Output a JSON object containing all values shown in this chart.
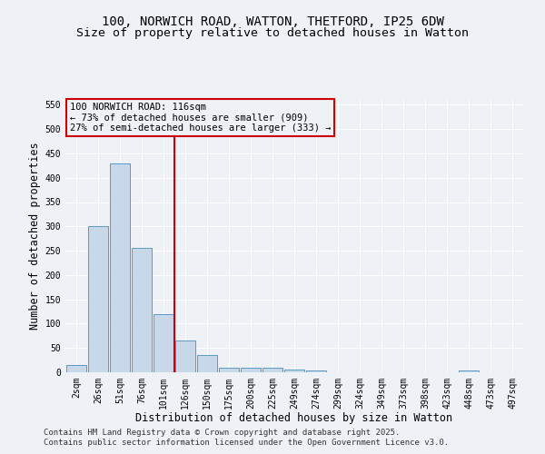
{
  "title_line1": "100, NORWICH ROAD, WATTON, THETFORD, IP25 6DW",
  "title_line2": "Size of property relative to detached houses in Watton",
  "xlabel": "Distribution of detached houses by size in Watton",
  "ylabel": "Number of detached properties",
  "categories": [
    "2sqm",
    "26sqm",
    "51sqm",
    "76sqm",
    "101sqm",
    "126sqm",
    "150sqm",
    "175sqm",
    "200sqm",
    "225sqm",
    "249sqm",
    "274sqm",
    "299sqm",
    "324sqm",
    "349sqm",
    "373sqm",
    "398sqm",
    "423sqm",
    "448sqm",
    "473sqm",
    "497sqm"
  ],
  "values": [
    15,
    300,
    430,
    255,
    120,
    65,
    35,
    10,
    10,
    10,
    5,
    3,
    0,
    0,
    0,
    0,
    0,
    0,
    3,
    0,
    0
  ],
  "bar_color": "#c8d8e8",
  "bar_edge_color": "#5a9ac8",
  "vline_color": "#cc0000",
  "vline_position": 4.5,
  "ylim": [
    0,
    560
  ],
  "yticks": [
    0,
    50,
    100,
    150,
    200,
    250,
    300,
    350,
    400,
    450,
    500,
    550
  ],
  "annotation_box_text": "100 NORWICH ROAD: 116sqm\n← 73% of detached houses are smaller (909)\n27% of semi-detached houses are larger (333) →",
  "box_edge_color": "#cc0000",
  "footnote1": "Contains HM Land Registry data © Crown copyright and database right 2025.",
  "footnote2": "Contains public sector information licensed under the Open Government Licence v3.0.",
  "background_color": "#eef2f7",
  "grid_color": "#ffffff",
  "title_fontsize": 10,
  "subtitle_fontsize": 9.5,
  "axis_label_fontsize": 8.5,
  "tick_fontsize": 7,
  "annotation_fontsize": 7.5,
  "footnote_fontsize": 6.5
}
